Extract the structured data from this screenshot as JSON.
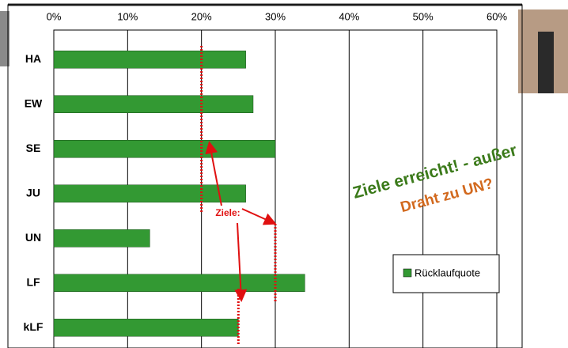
{
  "chart_data": {
    "type": "bar",
    "orientation": "horizontal",
    "categories": [
      "HA",
      "EW",
      "SE",
      "JU",
      "UN",
      "LF",
      "kLF"
    ],
    "series": [
      {
        "name": "Rücklaufquote",
        "color": "#339933",
        "values": [
          26,
          27,
          30,
          26,
          13,
          34,
          25
        ]
      }
    ],
    "xlim": [
      0,
      60
    ],
    "xticks": [
      {
        "value": 0,
        "label": "0%"
      },
      {
        "value": 10,
        "label": "10%"
      },
      {
        "value": 20,
        "label": "20%"
      },
      {
        "value": 30,
        "label": "30%"
      },
      {
        "value": 40,
        "label": "40%"
      },
      {
        "value": 50,
        "label": "50%"
      },
      {
        "value": 60,
        "label": "60%"
      }
    ],
    "grid": true,
    "legend": "right",
    "targets": [
      20,
      30,
      25
    ],
    "annotations": {
      "targets_label": "Ziele:",
      "headline": "Ziele erreicht! - außer",
      "headline2": "Draht zu UN?"
    }
  }
}
